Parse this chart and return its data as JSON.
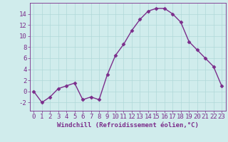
{
  "x": [
    0,
    1,
    2,
    3,
    4,
    5,
    6,
    7,
    8,
    9,
    10,
    11,
    12,
    13,
    14,
    15,
    16,
    17,
    18,
    19,
    20,
    21,
    22,
    23
  ],
  "y": [
    0,
    -2,
    -1,
    0.5,
    1,
    1.5,
    -1.5,
    -1,
    -1.5,
    3,
    6.5,
    8.5,
    11,
    13,
    14.5,
    15,
    15,
    14,
    12.5,
    9,
    7.5,
    6,
    4.5,
    1
  ],
  "line_color": "#7b2d8b",
  "marker": "D",
  "marker_size": 2.5,
  "bg_color": "#d0ecec",
  "grid_color": "#b0d8d8",
  "xlabel": "Windchill (Refroidissement éolien,°C)",
  "xlim": [
    -0.5,
    23.5
  ],
  "ylim": [
    -3.5,
    16
  ],
  "yticks": [
    -2,
    0,
    2,
    4,
    6,
    8,
    10,
    12,
    14
  ],
  "xticks": [
    0,
    1,
    2,
    3,
    4,
    5,
    6,
    7,
    8,
    9,
    10,
    11,
    12,
    13,
    14,
    15,
    16,
    17,
    18,
    19,
    20,
    21,
    22,
    23
  ],
  "tick_color": "#7b2d8b",
  "label_color": "#7b2d8b",
  "font_size": 6.5
}
